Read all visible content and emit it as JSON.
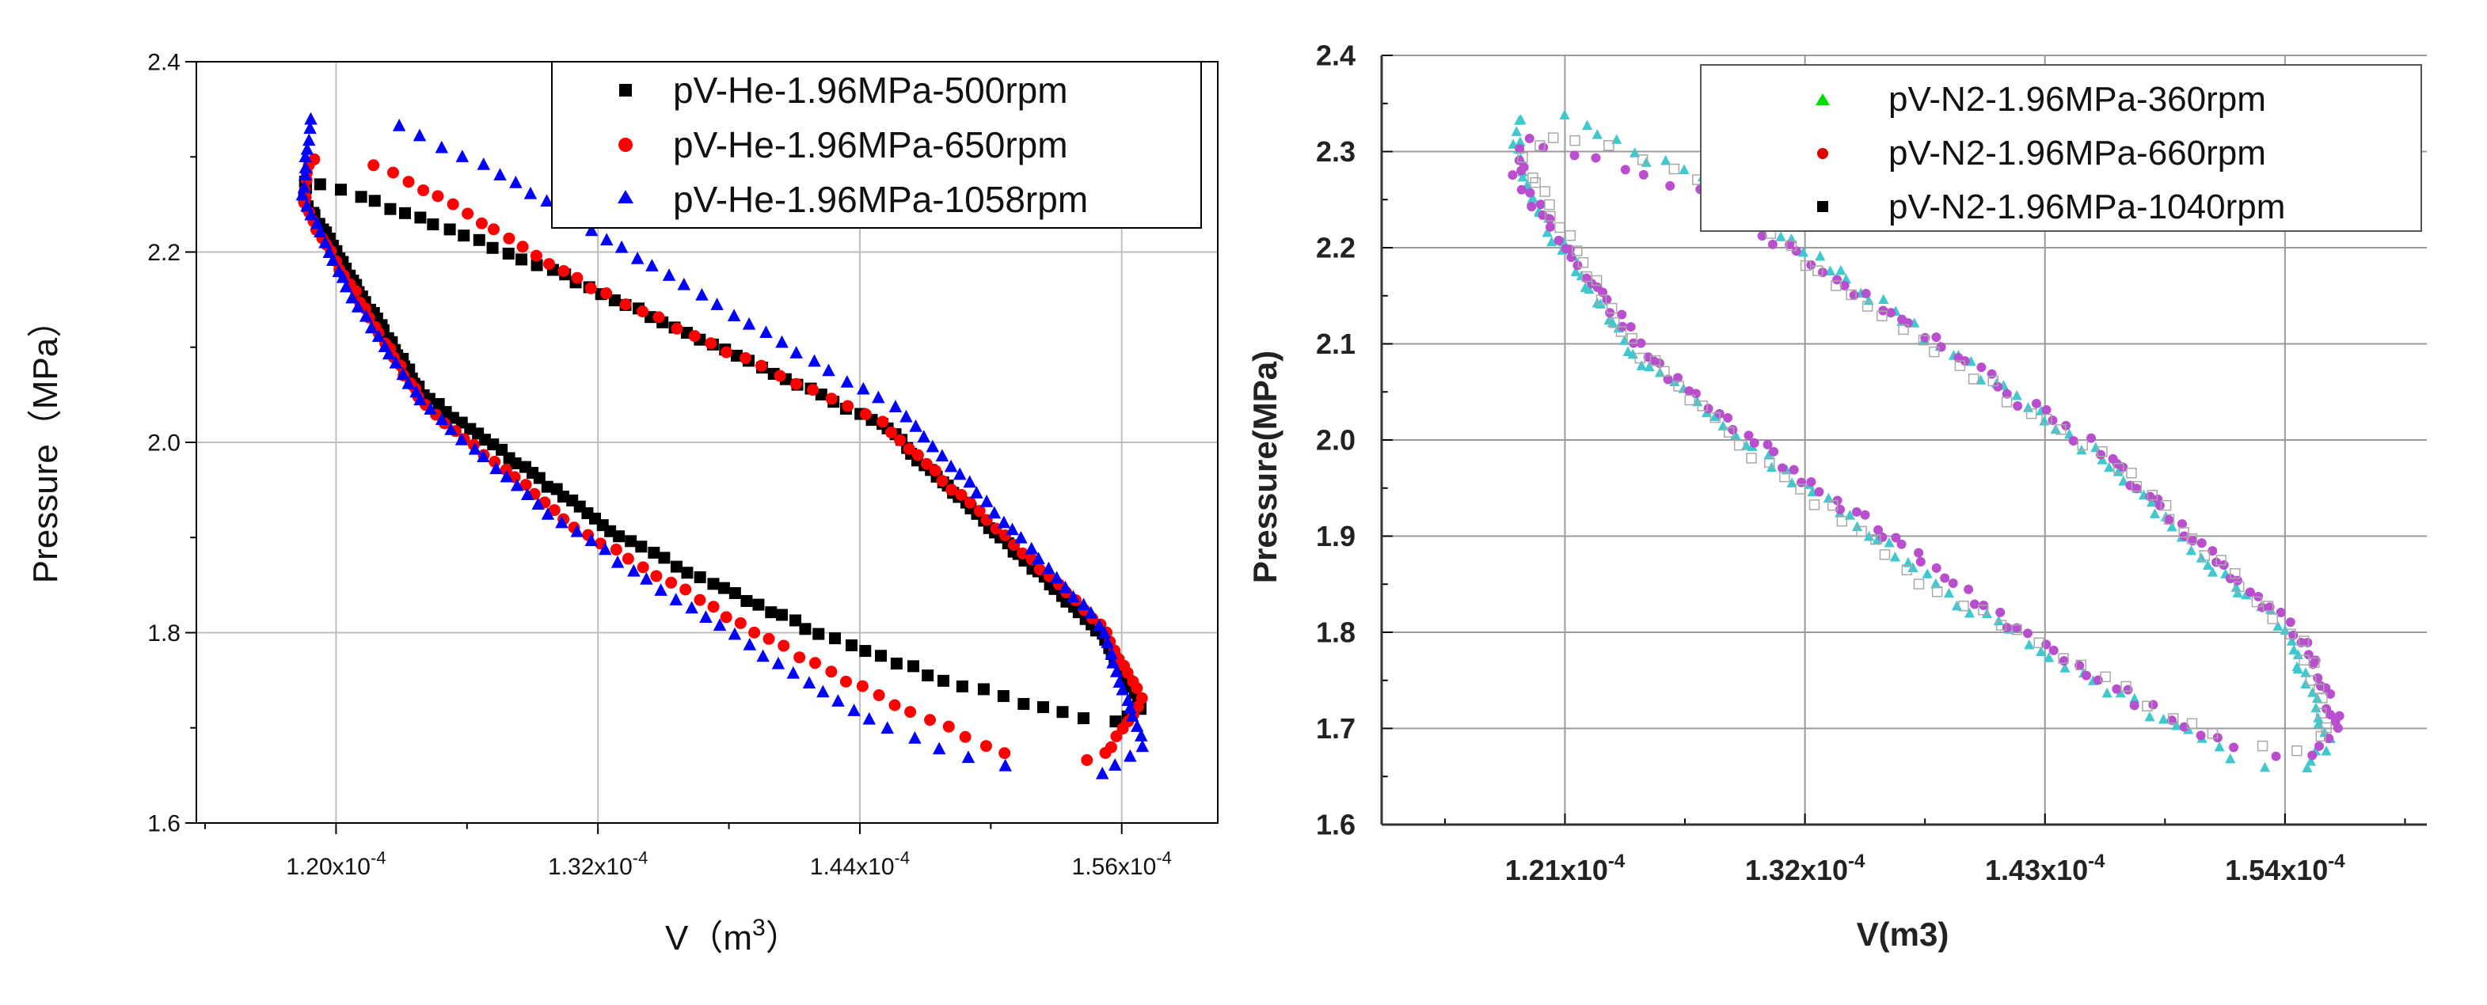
{
  "chart_data": [
    {
      "type": "scatter",
      "title": "",
      "xlabel": "V（m³）",
      "xlabel_main": "V（m",
      "xlabel_sup": "3",
      "xlabel_end": "）",
      "ylabel": "Pressure（MPa）",
      "xlim": [
        0.0001136,
        0.0001604
      ],
      "ylim": [
        1.6,
        2.4
      ],
      "xticks": [
        0.00012,
        0.000132,
        0.000144,
        0.000156
      ],
      "xtick_labels": [
        {
          "base": "1.20x10",
          "exp": "-4"
        },
        {
          "base": "1.32x10",
          "exp": "-4"
        },
        {
          "base": "1.44x10",
          "exp": "-4"
        },
        {
          "base": "1.56x10",
          "exp": "-4"
        }
      ],
      "yticks": [
        1.6,
        1.8,
        2.0,
        2.2,
        2.4
      ],
      "ytick_labels": [
        "1.6",
        "1.8",
        "2.0",
        "2.2",
        "2.4"
      ],
      "grid": true,
      "legend_position": "top-right",
      "series": [
        {
          "name": "pV-He-1.96MPa-500rpm",
          "marker": "square",
          "color": "#000000",
          "points": 190,
          "loop": [
            [
              0.0001186,
              2.255
            ],
            [
              0.0001186,
              2.275
            ],
            [
              0.000121,
              2.26
            ],
            [
              0.00013,
              2.18
            ],
            [
              0.000145,
              2.02
            ],
            [
              0.000155,
              1.8
            ],
            [
              0.000157,
              1.72
            ],
            [
              0.0001555,
              1.705
            ],
            [
              0.000154,
              1.71
            ],
            [
              0.000148,
              1.75
            ],
            [
              0.000142,
              1.8
            ],
            [
              0.000133,
              1.9
            ],
            [
              0.000124,
              2.05
            ],
            [
              0.0001205,
              2.18
            ],
            [
              0.0001186,
              2.255
            ]
          ]
        },
        {
          "name": "pV-He-1.96MPa-650rpm",
          "marker": "circle",
          "color": "#ff0000",
          "points": 150,
          "loop": [
            [
              0.0001185,
              2.25
            ],
            [
              0.0001188,
              2.3
            ],
            [
              0.000122,
              2.29
            ],
            [
              0.000126,
              2.24
            ],
            [
              0.000132,
              2.16
            ],
            [
              0.000145,
              2.02
            ],
            [
              0.000155,
              1.81
            ],
            [
              0.000157,
              1.73
            ],
            [
              0.000155,
              1.665
            ],
            [
              0.000151,
              1.67
            ],
            [
              0.000146,
              1.72
            ],
            [
              0.00014,
              1.79
            ],
            [
              0.000131,
              1.91
            ],
            [
              0.000124,
              2.04
            ],
            [
              0.0001205,
              2.17
            ],
            [
              0.0001185,
              2.25
            ]
          ]
        },
        {
          "name": "pV-He-1.96MPa-1058rpm",
          "marker": "triangle",
          "color": "#0000ff",
          "points": 140,
          "loop": [
            [
              0.0001185,
              2.26
            ],
            [
              0.0001188,
              2.34
            ],
            [
              0.000122,
              2.34
            ],
            [
              0.000127,
              2.29
            ],
            [
              0.000134,
              2.19
            ],
            [
              0.000146,
              2.03
            ],
            [
              0.000155,
              1.81
            ],
            [
              0.000157,
              1.68
            ],
            [
              0.000155,
              1.65
            ],
            [
              0.00015,
              1.66
            ],
            [
              0.000145,
              1.7
            ],
            [
              0.000138,
              1.8
            ],
            [
              0.00013,
              1.92
            ],
            [
              0.000124,
              2.04
            ],
            [
              0.0001205,
              2.16
            ],
            [
              0.0001185,
              2.26
            ]
          ]
        }
      ]
    },
    {
      "type": "scatter",
      "title": "",
      "xlabel": "V(m3)",
      "ylabel": "Pressure(MPa)",
      "xlim": [
        0.0001126,
        0.0001605
      ],
      "ylim": [
        1.6,
        2.4
      ],
      "xticks": [
        0.000121,
        0.000132,
        0.000143,
        0.000154
      ],
      "xtick_labels": [
        {
          "base": "1.21x10",
          "exp": "-4"
        },
        {
          "base": "1.32x10",
          "exp": "-4"
        },
        {
          "base": "1.43x10",
          "exp": "-4"
        },
        {
          "base": "1.54x10",
          "exp": "-4"
        }
      ],
      "yticks": [
        1.6,
        1.7,
        1.8,
        1.9,
        2.0,
        2.1,
        2.2,
        2.3,
        2.4
      ],
      "ytick_labels": [
        "1.6",
        "1.7",
        "1.8",
        "1.9",
        "2.0",
        "2.1",
        "2.2",
        "2.3",
        "2.4"
      ],
      "grid": true,
      "legend_position": "top-right",
      "series": [
        {
          "name": "pV-N2-1.96MPa-360rpm",
          "marker": "triangle",
          "color": "#00e000",
          "plot_color": "#3fc9cf",
          "points": 170,
          "loop": [
            [
              0.0001188,
              2.29
            ],
            [
              0.0001188,
              2.34
            ],
            [
              0.000121,
              2.335
            ],
            [
              0.000128,
              2.26
            ],
            [
              0.000135,
              2.15
            ],
            [
              0.000145,
              1.99
            ],
            [
              0.000154,
              1.8
            ],
            [
              0.000156,
              1.69
            ],
            [
              0.000155,
              1.655
            ],
            [
              0.000152,
              1.665
            ],
            [
              0.000146,
              1.74
            ],
            [
              0.000139,
              1.83
            ],
            [
              0.000131,
              1.97
            ],
            [
              0.000124,
              2.09
            ],
            [
              0.0001205,
              2.21
            ],
            [
              0.0001188,
              2.29
            ]
          ]
        },
        {
          "name": "pV-N2-1.96MPa-660rpm",
          "marker": "circle",
          "color": "#e00000",
          "plot_color": "#b94fcf",
          "points": 170,
          "loop": [
            [
              0.0001188,
              2.27
            ],
            [
              0.0001192,
              2.31
            ],
            [
              0.000121,
              2.3
            ],
            [
              0.000127,
              2.26
            ],
            [
              0.000134,
              2.16
            ],
            [
              0.000146,
              1.98
            ],
            [
              0.000155,
              1.79
            ],
            [
              0.0001565,
              1.7
            ],
            [
              0.000155,
              1.67
            ],
            [
              0.000152,
              1.68
            ],
            [
              0.000147,
              1.73
            ],
            [
              0.00014,
              1.83
            ],
            [
              0.000132,
              1.96
            ],
            [
              0.000125,
              2.08
            ],
            [
              0.000121,
              2.2
            ],
            [
              0.0001188,
              2.27
            ]
          ]
        },
        {
          "name": "pV-N2-1.96MPa-1040rpm",
          "marker": "square",
          "color": "#000000",
          "plot_color": "#a8a8a8",
          "points": 110,
          "loop": [
            [
              0.0001192,
              2.29
            ],
            [
              0.000121,
              2.32
            ],
            [
              0.000127,
              2.27
            ],
            [
              0.000134,
              2.15
            ],
            [
              0.000146,
              1.98
            ],
            [
              0.000155,
              1.78
            ],
            [
              0.000156,
              1.7
            ],
            [
              0.000154,
              1.675
            ],
            [
              0.000151,
              1.69
            ],
            [
              0.000144,
              1.77
            ],
            [
              0.000137,
              1.86
            ],
            [
              0.00013,
              1.98
            ],
            [
              0.000124,
              2.1
            ],
            [
              0.000121,
              2.21
            ],
            [
              0.0001192,
              2.29
            ]
          ]
        }
      ]
    }
  ]
}
